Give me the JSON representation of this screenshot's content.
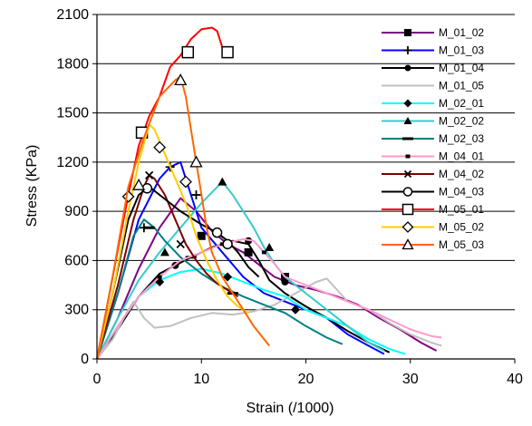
{
  "chart_data": {
    "type": "line",
    "title": "",
    "xlabel": "Strain (/1000)",
    "ylabel": "Stress (KPa)",
    "xlim": [
      0,
      40
    ],
    "ylim": [
      0,
      2100
    ],
    "x_ticks": [
      "0",
      "10",
      "20",
      "30",
      "40"
    ],
    "y_ticks": [
      "0",
      "300",
      "600",
      "900",
      "1200",
      "1500",
      "1800",
      "2100"
    ],
    "grid": "horizontal",
    "legend_position": "right",
    "series": [
      {
        "name": "M_01_02",
        "color": "#800080",
        "marker": "square-filled",
        "points": [
          [
            0,
            0
          ],
          [
            2,
            250
          ],
          [
            4,
            550
          ],
          [
            6,
            800
          ],
          [
            8,
            980
          ],
          [
            9.5,
            900
          ],
          [
            11,
            780
          ],
          [
            12.5,
            700
          ],
          [
            14,
            650
          ],
          [
            15,
            600
          ],
          [
            16,
            550
          ],
          [
            17,
            500
          ],
          [
            19,
            450
          ],
          [
            21,
            420
          ],
          [
            23,
            380
          ],
          [
            25,
            330
          ],
          [
            27,
            250
          ],
          [
            29,
            180
          ],
          [
            31,
            100
          ],
          [
            32.5,
            50
          ]
        ],
        "marker_points": [
          [
            10,
            750
          ],
          [
            14.5,
            650
          ],
          [
            18,
            500
          ]
        ]
      },
      {
        "name": "M_01_03",
        "color": "#0000FF",
        "marker": "plus",
        "points": [
          [
            0,
            0
          ],
          [
            2,
            400
          ],
          [
            4,
            850
          ],
          [
            6,
            1100
          ],
          [
            7,
            1170
          ],
          [
            8,
            1200
          ],
          [
            9,
            1000
          ],
          [
            10,
            800
          ],
          [
            12,
            650
          ],
          [
            14,
            500
          ],
          [
            16,
            400
          ],
          [
            18,
            350
          ],
          [
            20,
            300
          ],
          [
            22,
            250
          ],
          [
            24,
            150
          ],
          [
            26,
            80
          ],
          [
            27.5,
            30
          ]
        ],
        "marker_points": [
          [
            4.5,
            800
          ],
          [
            7,
            1170
          ],
          [
            9.5,
            1000
          ]
        ]
      },
      {
        "name": "M_01_04",
        "color": "#000000",
        "marker": "circle-filled",
        "points": [
          [
            0,
            0
          ],
          [
            2,
            180
          ],
          [
            4,
            380
          ],
          [
            6,
            520
          ],
          [
            7.5,
            570
          ],
          [
            9,
            620
          ],
          [
            11,
            680
          ],
          [
            13,
            720
          ],
          [
            14.5,
            700
          ],
          [
            15.5,
            600
          ],
          [
            16.5,
            480
          ],
          [
            18,
            400
          ],
          [
            20,
            320
          ],
          [
            22,
            250
          ],
          [
            24,
            170
          ],
          [
            26,
            100
          ],
          [
            28,
            40
          ]
        ],
        "marker_points": [
          [
            7.5,
            570
          ],
          [
            14.5,
            720
          ],
          [
            18,
            470
          ]
        ]
      },
      {
        "name": "M_01_05",
        "color": "#C0C0C0",
        "marker": "none",
        "points": [
          [
            0,
            0
          ],
          [
            1.5,
            120
          ],
          [
            3,
            300
          ],
          [
            3.5,
            350
          ],
          [
            4.5,
            250
          ],
          [
            5.5,
            190
          ],
          [
            7,
            200
          ],
          [
            9,
            250
          ],
          [
            11,
            280
          ],
          [
            13,
            270
          ],
          [
            15,
            290
          ],
          [
            17,
            330
          ],
          [
            19,
            400
          ],
          [
            21,
            470
          ],
          [
            22,
            490
          ],
          [
            23,
            420
          ],
          [
            24,
            350
          ],
          [
            26,
            300
          ],
          [
            28,
            220
          ],
          [
            30,
            150
          ],
          [
            32,
            100
          ],
          [
            33,
            80
          ]
        ],
        "marker_points": []
      },
      {
        "name": "M_02_01",
        "color": "#00FFFF",
        "marker": "diamond-filled",
        "points": [
          [
            0,
            0
          ],
          [
            2,
            200
          ],
          [
            4,
            380
          ],
          [
            6,
            480
          ],
          [
            8,
            530
          ],
          [
            10,
            550
          ],
          [
            12,
            520
          ],
          [
            14,
            470
          ],
          [
            16,
            420
          ],
          [
            18,
            380
          ],
          [
            20,
            300
          ],
          [
            22,
            250
          ],
          [
            24,
            200
          ],
          [
            26,
            120
          ],
          [
            28,
            60
          ],
          [
            29.5,
            30
          ]
        ],
        "marker_points": [
          [
            6,
            470
          ],
          [
            12.5,
            500
          ],
          [
            19,
            300
          ]
        ]
      },
      {
        "name": "M_02_02",
        "color": "#33CCCC",
        "marker": "triangle-filled",
        "points": [
          [
            0,
            0
          ],
          [
            2,
            250
          ],
          [
            4,
            480
          ],
          [
            6,
            650
          ],
          [
            8,
            800
          ],
          [
            10,
            950
          ],
          [
            12,
            1080
          ],
          [
            13,
            1000
          ],
          [
            14,
            900
          ],
          [
            15,
            800
          ],
          [
            16,
            680
          ],
          [
            17,
            580
          ],
          [
            18,
            500
          ],
          [
            20,
            400
          ],
          [
            22,
            300
          ],
          [
            24,
            200
          ],
          [
            26,
            100
          ],
          [
            27.5,
            50
          ]
        ],
        "marker_points": [
          [
            6.5,
            650
          ],
          [
            12,
            1080
          ],
          [
            16.5,
            680
          ]
        ]
      },
      {
        "name": "M_02_03",
        "color": "#008080",
        "marker": "dash",
        "points": [
          [
            0,
            0
          ],
          [
            2,
            400
          ],
          [
            3.5,
            750
          ],
          [
            4.5,
            850
          ],
          [
            5.5,
            800
          ],
          [
            6.5,
            720
          ],
          [
            8,
            620
          ],
          [
            10,
            520
          ],
          [
            12,
            440
          ],
          [
            14,
            380
          ],
          [
            16,
            330
          ],
          [
            18,
            280
          ],
          [
            20,
            200
          ],
          [
            22,
            130
          ],
          [
            23.5,
            90
          ]
        ],
        "marker_points": [
          [
            5,
            800
          ],
          [
            9,
            620
          ],
          [
            13,
            400
          ]
        ]
      },
      {
        "name": "M_04_01",
        "color": "#FF99CC",
        "marker": "small-square",
        "points": [
          [
            0,
            0
          ],
          [
            2,
            200
          ],
          [
            4,
            380
          ],
          [
            6,
            500
          ],
          [
            8,
            600
          ],
          [
            10,
            650
          ],
          [
            12,
            700
          ],
          [
            14,
            730
          ],
          [
            15,
            720
          ],
          [
            16,
            650
          ],
          [
            17,
            580
          ],
          [
            18,
            500
          ],
          [
            20,
            450
          ],
          [
            22,
            400
          ],
          [
            24,
            350
          ],
          [
            26,
            300
          ],
          [
            28,
            240
          ],
          [
            30,
            180
          ],
          [
            32,
            140
          ],
          [
            33,
            130
          ]
        ],
        "marker_points": [
          [
            6,
            500
          ],
          [
            12,
            700
          ],
          [
            16,
            650
          ]
        ]
      },
      {
        "name": "M_04_02",
        "color": "#800000",
        "marker": "x",
        "points": [
          [
            0,
            0
          ],
          [
            2,
            450
          ],
          [
            3.5,
            850
          ],
          [
            4.5,
            1050
          ],
          [
            5,
            1120
          ],
          [
            5.5,
            1100
          ],
          [
            6.5,
            1000
          ],
          [
            7.5,
            850
          ],
          [
            8.5,
            700
          ],
          [
            9.5,
            600
          ],
          [
            10.5,
            520
          ],
          [
            11.5,
            460
          ],
          [
            12.5,
            420
          ],
          [
            13.5,
            380
          ]
        ],
        "marker_points": [
          [
            5,
            1120
          ],
          [
            8,
            700
          ]
        ]
      },
      {
        "name": "M_04_03",
        "color": "#000000",
        "marker": "circle-open",
        "points": [
          [
            0,
            0
          ],
          [
            1.5,
            400
          ],
          [
            3,
            850
          ],
          [
            4,
            1000
          ],
          [
            5,
            1050
          ],
          [
            6,
            1000
          ],
          [
            8,
            900
          ],
          [
            10,
            820
          ],
          [
            11.5,
            770
          ],
          [
            12.5,
            720
          ],
          [
            13.5,
            650
          ],
          [
            14.5,
            560
          ],
          [
            15.5,
            500
          ]
        ],
        "marker_points": [
          [
            4.8,
            1040
          ],
          [
            11.5,
            770
          ],
          [
            12.5,
            700
          ]
        ]
      },
      {
        "name": "M_05_01",
        "color": "#FF0000",
        "marker": "square-open",
        "points": [
          [
            0,
            0
          ],
          [
            1.5,
            500
          ],
          [
            3,
            1000
          ],
          [
            4,
            1300
          ],
          [
            5,
            1480
          ],
          [
            6,
            1600
          ],
          [
            7,
            1780
          ],
          [
            8,
            1850
          ],
          [
            9,
            1950
          ],
          [
            10,
            2010
          ],
          [
            11,
            2020
          ],
          [
            11.5,
            2000
          ],
          [
            12,
            1900
          ],
          [
            12.5,
            1870
          ]
        ],
        "marker_points": [
          [
            4.3,
            1380
          ],
          [
            8.7,
            1870
          ],
          [
            12.5,
            1870
          ]
        ]
      },
      {
        "name": "M_05_02",
        "color": "#FFCC00",
        "marker": "diamond-open",
        "points": [
          [
            0,
            0
          ],
          [
            1.5,
            400
          ],
          [
            3,
            900
          ],
          [
            4,
            1200
          ],
          [
            5,
            1430
          ],
          [
            5.5,
            1400
          ],
          [
            6.5,
            1250
          ],
          [
            7.5,
            1100
          ],
          [
            8.5,
            950
          ],
          [
            9.5,
            750
          ],
          [
            10.5,
            600
          ],
          [
            11.5,
            480
          ],
          [
            12.5,
            380
          ],
          [
            13.5,
            320
          ],
          [
            14.5,
            280
          ]
        ],
        "marker_points": [
          [
            3,
            990
          ],
          [
            6,
            1290
          ],
          [
            8.5,
            1080
          ]
        ]
      },
      {
        "name": "M_05_03",
        "color": "#FF6600",
        "marker": "triangle-open",
        "points": [
          [
            0,
            0
          ],
          [
            1.5,
            500
          ],
          [
            3,
            1050
          ],
          [
            4.5,
            1350
          ],
          [
            6,
            1600
          ],
          [
            7.5,
            1700
          ],
          [
            8,
            1720
          ],
          [
            8.5,
            1600
          ],
          [
            9,
            1400
          ],
          [
            9.5,
            1200
          ],
          [
            10,
            1000
          ],
          [
            10.5,
            800
          ],
          [
            11,
            650
          ],
          [
            12,
            500
          ],
          [
            13,
            400
          ],
          [
            14,
            300
          ],
          [
            15,
            200
          ],
          [
            16,
            120
          ],
          [
            16.5,
            80
          ]
        ],
        "marker_points": [
          [
            4,
            1060
          ],
          [
            8,
            1700
          ],
          [
            9.5,
            1200
          ]
        ]
      }
    ]
  }
}
